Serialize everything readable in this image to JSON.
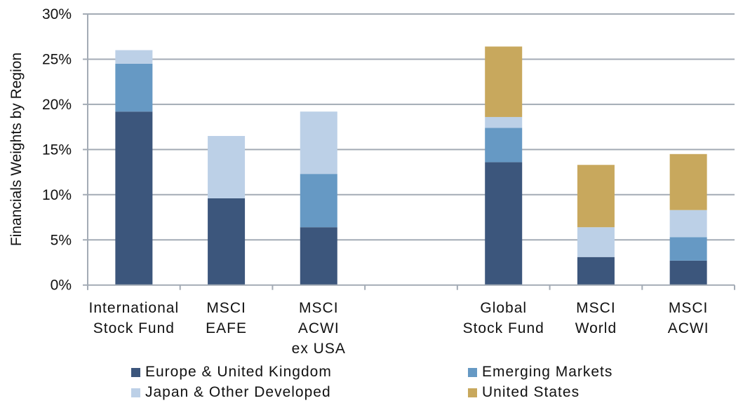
{
  "chart_data": {
    "type": "bar",
    "stacked": true,
    "title": "",
    "xlabel": "",
    "ylabel": "Financials Weights by Region",
    "ylim": [
      0,
      30
    ],
    "yticks": [
      0,
      5,
      10,
      15,
      20,
      25,
      30
    ],
    "ytick_labels": [
      "0%",
      "5%",
      "10%",
      "15%",
      "20%",
      "25%",
      "30%"
    ],
    "grid": true,
    "legend_position": "bottom",
    "categories": [
      {
        "label": [
          "International",
          "Stock Fund"
        ]
      },
      {
        "label": [
          "MSCI",
          "EAFE"
        ]
      },
      {
        "label": [
          "MSCI",
          "ACWI",
          "ex USA"
        ]
      },
      {
        "label": [
          ""
        ],
        "gap": true
      },
      {
        "label": [
          "Global",
          "Stock Fund"
        ]
      },
      {
        "label": [
          "MSCI",
          "World"
        ]
      },
      {
        "label": [
          "MSCI",
          "ACWI"
        ]
      }
    ],
    "series": [
      {
        "name": "Europe & United Kingdom",
        "color": "#3c567c",
        "values": [
          19.2,
          9.6,
          6.4,
          null,
          13.6,
          3.1,
          2.7
        ]
      },
      {
        "name": "Emerging Markets",
        "color": "#6699c4",
        "values": [
          5.3,
          0,
          5.9,
          null,
          3.8,
          0,
          2.6
        ]
      },
      {
        "name": "Japan & Other Developed",
        "color": "#bcd0e7",
        "values": [
          1.5,
          6.9,
          6.9,
          null,
          1.2,
          3.3,
          3.0
        ]
      },
      {
        "name": "United States",
        "color": "#c8a85d",
        "values": [
          0,
          0,
          0,
          null,
          7.8,
          6.9,
          6.2
        ]
      }
    ]
  },
  "legend": {
    "items": [
      {
        "name": "Europe & United Kingdom",
        "color": "#3c567c"
      },
      {
        "name": "Emerging Markets",
        "color": "#6699c4"
      },
      {
        "name": "Japan & Other Developed",
        "color": "#bcd0e7"
      },
      {
        "name": "United States",
        "color": "#c8a85d"
      }
    ]
  },
  "colors": {
    "grid": "#a3abb5",
    "axis": "#a3abb5"
  }
}
